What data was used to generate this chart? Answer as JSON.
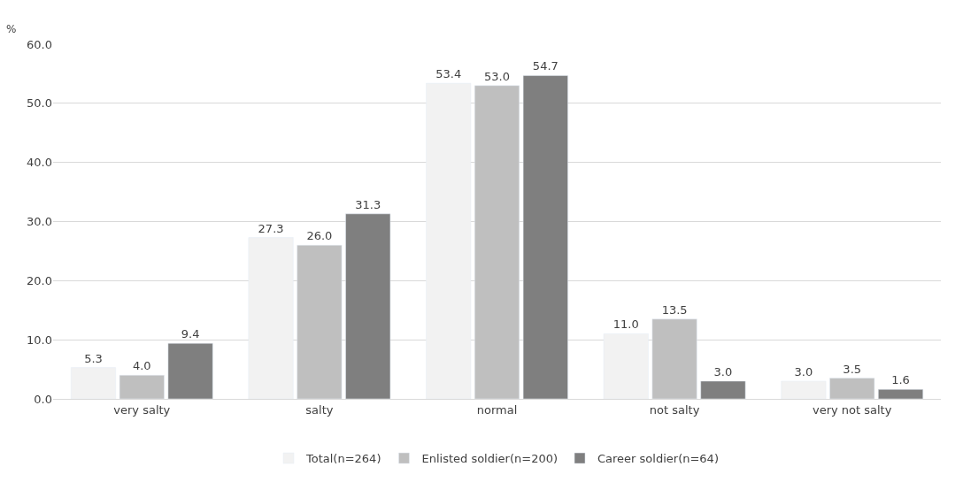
{
  "chart_data": {
    "type": "bar",
    "ylabel": "%",
    "categories": [
      "very salty",
      "salty",
      "normal",
      "not salty",
      "very not salty"
    ],
    "series": [
      {
        "name": "Total(n=264)",
        "color": "#f2f2f2",
        "values": [
          5.3,
          27.3,
          53.4,
          11.0,
          3.0
        ],
        "value_labels": [
          "5.3",
          "27.3",
          "53.4",
          "11.0",
          "3.0"
        ]
      },
      {
        "name": "Enlisted soldier(n=200)",
        "color": "#bfbfbf",
        "values": [
          4.0,
          26.0,
          53.0,
          13.5,
          3.5
        ],
        "value_labels": [
          "4.0",
          "26.0",
          "53.0",
          "13.5",
          "3.5"
        ]
      },
      {
        "name": "Career soldier(n=64)",
        "color": "#7f7f7f",
        "values": [
          9.4,
          31.3,
          54.7,
          3.0,
          1.6
        ],
        "value_labels": [
          "9.4",
          "31.3",
          "54.7",
          "3.0",
          "1.6"
        ]
      }
    ],
    "ylim": [
      0,
      60
    ],
    "yticks": [
      {
        "value": 0,
        "label": "0.0"
      },
      {
        "value": 10,
        "label": "10.0"
      },
      {
        "value": 20,
        "label": "20.0"
      },
      {
        "value": 30,
        "label": "30.0"
      },
      {
        "value": 40,
        "label": "40.0"
      },
      {
        "value": 50,
        "label": "50.0"
      },
      {
        "value": 60,
        "label": "60.0"
      }
    ],
    "grid": "y",
    "legend": "bottom"
  }
}
